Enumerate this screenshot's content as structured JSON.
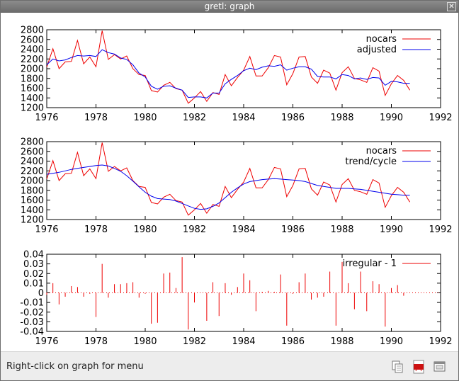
{
  "window": {
    "title": "gretl: graph"
  },
  "status": {
    "text": "Right-click on graph for menu"
  },
  "toolbar": {
    "icons": [
      "copy-icon",
      "pdf-icon",
      "window-icon"
    ]
  },
  "colors": {
    "red": "#ee0000",
    "blue": "#0000ee"
  },
  "chart_data": [
    {
      "type": "line",
      "xlim": [
        1976,
        1992
      ],
      "ylim": [
        1200,
        2800
      ],
      "xticks": [
        1976,
        1978,
        1980,
        1982,
        1984,
        1986,
        1988,
        1990,
        1992
      ],
      "yticks": [
        1200,
        1400,
        1600,
        1800,
        2000,
        2200,
        2400,
        2600,
        2800
      ],
      "legend": "top-right",
      "x_start": 1976.0,
      "x_step": 0.25,
      "series": [
        {
          "name": "nocars",
          "color": "#ee0000",
          "values": [
            2030,
            2410,
            2000,
            2140,
            2150,
            2580,
            2100,
            2240,
            2040,
            2780,
            2190,
            2290,
            2200,
            2260,
            2000,
            1880,
            1860,
            1550,
            1520,
            1660,
            1720,
            1590,
            1560,
            1290,
            1400,
            1530,
            1330,
            1510,
            1470,
            1880,
            1650,
            1820,
            1970,
            2250,
            1850,
            1850,
            2020,
            2270,
            2240,
            1670,
            1900,
            2240,
            2250,
            1830,
            1700,
            1970,
            1910,
            1560,
            1920,
            2040,
            1800,
            1770,
            1720,
            2020,
            1950,
            1450,
            1690,
            1860,
            1760,
            1560
          ]
        },
        {
          "name": "adjusted",
          "color": "#0000ee",
          "values": [
            2080,
            2200,
            2160,
            2180,
            2230,
            2270,
            2260,
            2270,
            2250,
            2390,
            2330,
            2300,
            2220,
            2190,
            2080,
            1910,
            1830,
            1640,
            1580,
            1640,
            1650,
            1600,
            1560,
            1410,
            1420,
            1420,
            1400,
            1500,
            1500,
            1690,
            1780,
            1860,
            1960,
            2010,
            1980,
            2030,
            2060,
            2050,
            2080,
            1970,
            2010,
            2040,
            2040,
            1990,
            1840,
            1830,
            1830,
            1790,
            1880,
            1860,
            1790,
            1810,
            1780,
            1820,
            1810,
            1660,
            1740,
            1730,
            1700,
            1700
          ]
        }
      ]
    },
    {
      "type": "line",
      "xlim": [
        1976,
        1992
      ],
      "ylim": [
        1200,
        2800
      ],
      "xticks": [
        1976,
        1978,
        1980,
        1982,
        1984,
        1986,
        1988,
        1990,
        1992
      ],
      "yticks": [
        1200,
        1400,
        1600,
        1800,
        2000,
        2200,
        2400,
        2600,
        2800
      ],
      "legend": "top-right",
      "x_start": 1976.0,
      "x_step": 0.25,
      "series": [
        {
          "name": "nocars",
          "color": "#ee0000",
          "values": [
            2030,
            2410,
            2000,
            2140,
            2150,
            2580,
            2100,
            2240,
            2040,
            2780,
            2190,
            2290,
            2200,
            2260,
            2000,
            1880,
            1860,
            1550,
            1520,
            1660,
            1720,
            1590,
            1560,
            1290,
            1400,
            1530,
            1330,
            1510,
            1470,
            1880,
            1650,
            1820,
            1970,
            2250,
            1850,
            1850,
            2020,
            2270,
            2240,
            1670,
            1900,
            2240,
            2250,
            1830,
            1700,
            1970,
            1910,
            1560,
            1920,
            2040,
            1800,
            1770,
            1720,
            2020,
            1950,
            1450,
            1690,
            1860,
            1760,
            1560
          ]
        },
        {
          "name": "trend/cycle",
          "color": "#0000ee",
          "values": [
            2130,
            2150,
            2170,
            2200,
            2230,
            2250,
            2270,
            2290,
            2310,
            2320,
            2300,
            2250,
            2190,
            2100,
            1990,
            1870,
            1760,
            1680,
            1630,
            1620,
            1610,
            1580,
            1530,
            1480,
            1430,
            1410,
            1420,
            1470,
            1540,
            1650,
            1760,
            1850,
            1930,
            1980,
            2000,
            2020,
            2030,
            2040,
            2030,
            2020,
            2010,
            2000,
            1980,
            1940,
            1900,
            1880,
            1860,
            1840,
            1840,
            1840,
            1830,
            1820,
            1800,
            1780,
            1760,
            1740,
            1720,
            1710,
            1700,
            1700
          ]
        }
      ]
    },
    {
      "type": "bar",
      "xlim": [
        1976,
        1992
      ],
      "ylim": [
        -0.04,
        0.04
      ],
      "xticks": [
        1976,
        1978,
        1980,
        1982,
        1984,
        1986,
        1988,
        1990,
        1992
      ],
      "yticks": [
        -0.04,
        -0.03,
        -0.02,
        -0.01,
        0,
        0.01,
        0.02,
        0.03,
        0.04
      ],
      "legend": "top-right",
      "x_start": 1976.0,
      "x_step": 0.25,
      "series": [
        {
          "name": "irregular - 1",
          "color": "#ee0000",
          "values": [
            -0.002,
            0.01,
            -0.012,
            -0.004,
            0.007,
            0.006,
            -0.004,
            -0.001,
            -0.025,
            0.03,
            -0.005,
            0.009,
            0.009,
            0.01,
            0.011,
            -0.005,
            -0.001,
            -0.032,
            -0.031,
            0.02,
            0.021,
            0.005,
            0.037,
            -0.038,
            -0.01,
            0.0,
            -0.029,
            0.011,
            -0.024,
            0.01,
            -0.002,
            0.006,
            0.02,
            0.013,
            -0.019,
            0.001,
            0.002,
            0.001,
            0.019,
            -0.034,
            -0.001,
            0.011,
            0.02,
            -0.007,
            -0.005,
            -0.004,
            0.022,
            -0.034,
            0.032,
            0.01,
            -0.017,
            0.022,
            -0.019,
            0.012,
            0.009,
            -0.035,
            0.005,
            0.008,
            -0.003,
            0.0
          ]
        }
      ]
    }
  ]
}
